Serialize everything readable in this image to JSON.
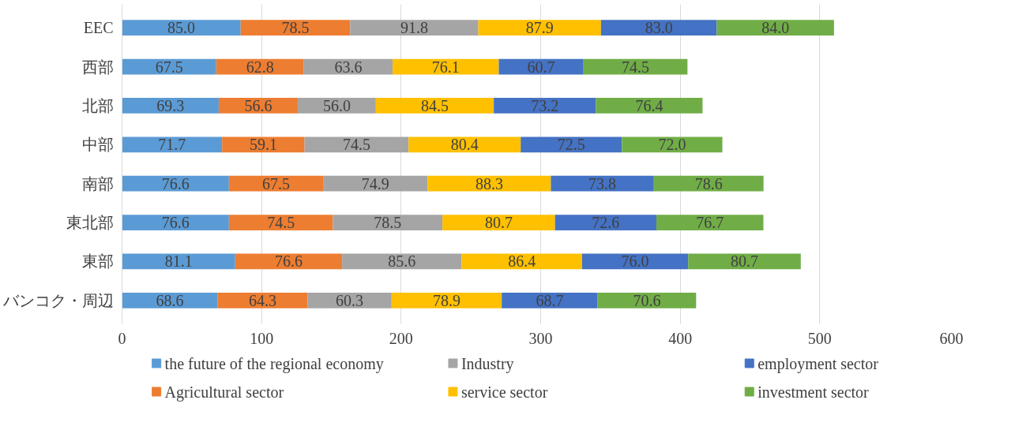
{
  "chart_data": {
    "type": "bar",
    "orientation": "horizontal",
    "stacked": true,
    "categories": [
      "EEC",
      "西部",
      "北部",
      "中部",
      "南部",
      "東北部",
      "東部",
      "バンコク・周辺"
    ],
    "series": [
      {
        "name": "the future of the regional economy",
        "color": "#5b9bd5",
        "values": [
          85.0,
          67.5,
          69.3,
          71.7,
          76.6,
          76.6,
          81.1,
          68.6
        ],
        "value_labels": [
          "85.0",
          "67.5",
          "69.3",
          "71.7",
          "76.6",
          "76.6",
          "81.1",
          "68.6"
        ]
      },
      {
        "name": "Agricultural sector",
        "color": "#ed7d31",
        "values": [
          78.5,
          62.8,
          56.6,
          59.1,
          67.5,
          74.5,
          76.6,
          64.3
        ],
        "value_labels": [
          "78.5",
          "62.8",
          "56.6",
          "59.1",
          "67.5",
          "74.5",
          "76.6",
          "64.3"
        ]
      },
      {
        "name": "Industry",
        "color": "#a5a5a5",
        "values": [
          91.8,
          63.6,
          56.0,
          74.5,
          74.9,
          78.5,
          85.6,
          60.3
        ],
        "value_labels": [
          "91.8",
          "63.6",
          "56.0",
          "74.5",
          "74.9",
          "78.5",
          "85.6",
          "60.3"
        ]
      },
      {
        "name": "service sector",
        "color": "#ffc000",
        "values": [
          87.9,
          76.1,
          84.5,
          80.4,
          88.3,
          80.7,
          86.4,
          78.9
        ],
        "value_labels": [
          "87.9",
          "76.1",
          "84.5",
          "80.4",
          "88.3",
          "80.7",
          "86.4",
          "78.9"
        ]
      },
      {
        "name": "employment sector",
        "color": "#4472c4",
        "values": [
          83.0,
          60.7,
          73.2,
          72.5,
          73.8,
          72.6,
          76.0,
          68.7
        ],
        "value_labels": [
          "83.0",
          "60.7",
          "73.2",
          "72.5",
          "73.8",
          "72.6",
          "76.0",
          "68.7"
        ]
      },
      {
        "name": "investment sector",
        "color": "#70ad47",
        "values": [
          84.0,
          74.5,
          76.4,
          72.0,
          78.6,
          76.7,
          80.7,
          70.6
        ],
        "value_labels": [
          "84.0",
          "74.5",
          "76.4",
          "72.0",
          "78.6",
          "76.7",
          "80.7",
          "70.6"
        ]
      }
    ],
    "xlim": [
      0,
      600
    ],
    "xticks": [
      0,
      100,
      200,
      300,
      400,
      500,
      600
    ],
    "grid": "x",
    "legend": "bottom"
  }
}
